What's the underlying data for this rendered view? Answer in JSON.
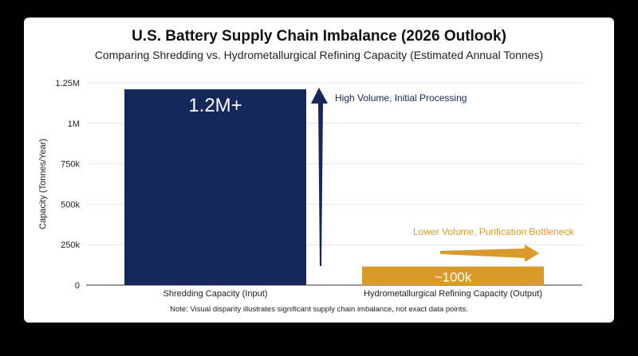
{
  "chart_data": {
    "type": "bar",
    "title": "U.S. Battery Supply Chain Imbalance (2026 Outlook)",
    "subtitle": "Comparing Shredding vs. Hydrometallurgical Refining Capacity (Estimated Annual Tonnes)",
    "ylabel": "Capacity (Tonnes/Year)",
    "xlabel": "",
    "ylim": [
      0,
      1250000
    ],
    "yticks": [
      0,
      250000,
      500000,
      750000,
      1000000,
      1250000
    ],
    "ytick_labels": [
      "0",
      "250k",
      "500k",
      "750k",
      "1M",
      "1.25M"
    ],
    "grid": true,
    "categories": [
      "Shredding Capacity (Input)",
      "Hydrometallurgical Refining Capacity (Output)"
    ],
    "values": [
      1210000,
      115000
    ],
    "data_labels": [
      "1.2M+",
      "~100k"
    ],
    "colors": [
      "#14285a",
      "#d99a2b"
    ],
    "annotations": [
      {
        "text": "High Volume, Initial Processing",
        "color": "#14285a",
        "arrow": "up"
      },
      {
        "text": "Lower Volume, Purification Bottleneck",
        "color": "#d99a2b",
        "arrow": "right"
      }
    ],
    "note": "Note: Visual disparity illustrates significant supply chain imbalance, not exact data points."
  }
}
